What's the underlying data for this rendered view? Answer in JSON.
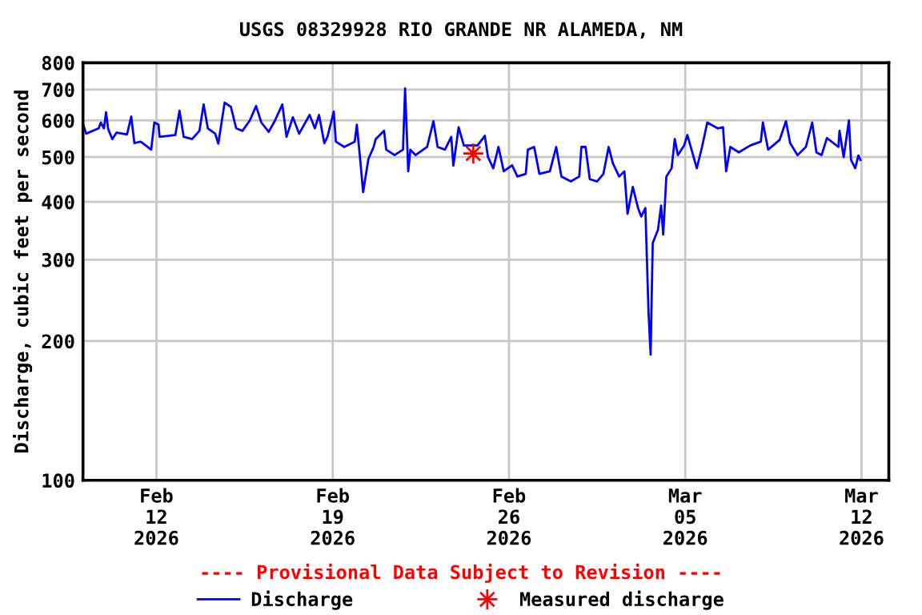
{
  "chart_data": {
    "type": "line",
    "title": "USGS 08329928 RIO GRANDE NR ALAMEDA, NM",
    "ylabel": "Discharge, cubic feet per second",
    "annotations": [
      "---- Provisional Data Subject to Revision ----"
    ],
    "log": "y",
    "grid": true,
    "legend": "bottom",
    "xlim": [
      "2026-02-09T02:00",
      "2026-03-13T02:00"
    ],
    "xticks": [
      {
        "value": "2026-02-12",
        "label": "Feb\n12\n2026"
      },
      {
        "value": "2026-02-19",
        "label": "Feb\n19\n2026"
      },
      {
        "value": "2026-02-26",
        "label": "Feb\n26\n2026"
      },
      {
        "value": "2026-03-05",
        "label": "Mar\n05\n2026"
      },
      {
        "value": "2026-03-12",
        "label": "Mar\n12\n2026"
      }
    ],
    "ylim": [
      100,
      800
    ],
    "yticks": [
      100,
      200,
      300,
      400,
      500,
      600,
      700,
      800
    ],
    "series": [
      {
        "name": "Discharge",
        "color": "#0000ff",
        "marker": "none",
        "x": [
          "2026-02-09T02:00",
          "2026-02-09T05:00",
          "2026-02-09T17:00",
          "2026-02-09T19:00",
          "2026-02-09T22:00",
          "2026-02-10T00:00",
          "2026-02-10T02:00",
          "2026-02-10T06:00",
          "2026-02-10T10:00",
          "2026-02-10T20:00",
          "2026-02-11T00:00",
          "2026-02-11T03:00",
          "2026-02-11T09:00",
          "2026-02-11T19:00",
          "2026-02-11T22:00",
          "2026-02-12T02:00",
          "2026-02-12T03:00",
          "2026-02-12T18:00",
          "2026-02-12T22:00",
          "2026-02-13T02:00",
          "2026-02-13T10:00",
          "2026-02-13T17:00",
          "2026-02-13T21:00",
          "2026-02-14T01:00",
          "2026-02-14T08:00",
          "2026-02-14T11:00",
          "2026-02-14T17:00",
          "2026-02-14T23:00",
          "2026-02-15T04:00",
          "2026-02-15T10:00",
          "2026-02-15T17:00",
          "2026-02-15T23:00",
          "2026-02-16T04:00",
          "2026-02-16T11:00",
          "2026-02-16T17:00",
          "2026-02-17T00:00",
          "2026-02-17T04:00",
          "2026-02-17T10:00",
          "2026-02-17T16:00",
          "2026-02-18T02:00",
          "2026-02-18T07:00",
          "2026-02-18T11:00",
          "2026-02-18T16:00",
          "2026-02-18T19:00",
          "2026-02-19T01:00",
          "2026-02-19T03:00",
          "2026-02-19T11:00",
          "2026-02-19T21:00",
          "2026-02-19T23:00",
          "2026-02-20T02:00",
          "2026-02-20T05:00",
          "2026-02-20T10:00",
          "2026-02-20T15:00",
          "2026-02-20T17:00",
          "2026-02-21T01:00",
          "2026-02-21T03:00",
          "2026-02-21T11:00",
          "2026-02-21T19:00",
          "2026-02-21T21:00",
          "2026-02-22T00:00",
          "2026-02-22T02:00",
          "2026-02-22T07:00",
          "2026-02-22T18:00",
          "2026-02-23T00:00",
          "2026-02-23T04:00",
          "2026-02-23T11:00",
          "2026-02-23T17:00",
          "2026-02-23T19:00",
          "2026-02-24T00:00",
          "2026-02-24T05:00",
          "2026-02-24T18:00",
          "2026-02-25T01:00",
          "2026-02-25T04:00",
          "2026-02-25T09:00",
          "2026-02-25T14:00",
          "2026-02-25T19:00",
          "2026-02-26T03:00",
          "2026-02-26T08:00",
          "2026-02-26T16:00",
          "2026-02-26T18:00",
          "2026-02-27T00:00",
          "2026-02-27T05:00",
          "2026-02-27T15:00",
          "2026-02-27T21:00",
          "2026-02-28T02:00",
          "2026-02-28T11:00",
          "2026-02-28T19:00",
          "2026-02-28T21:00",
          "2026-03-01T01:00",
          "2026-03-01T05:00",
          "2026-03-01T12:00",
          "2026-03-01T18:00",
          "2026-03-01T23:00",
          "2026-03-02T03:00",
          "2026-03-02T09:00",
          "2026-03-02T14:00",
          "2026-03-02T17:00",
          "2026-03-02T22:00",
          "2026-03-03T03:00",
          "2026-03-03T06:00",
          "2026-03-03T10:00",
          "2026-03-03T13:00",
          "2026-03-03T15:00",
          "2026-03-03T17:00",
          "2026-03-03T22:00",
          "2026-03-04T01:00",
          "2026-03-04T03:00",
          "2026-03-04T06:00",
          "2026-03-04T11:00",
          "2026-03-04T14:00",
          "2026-03-04T17:00",
          "2026-03-04T23:00",
          "2026-03-05T02:00",
          "2026-03-05T06:00",
          "2026-03-05T11:00",
          "2026-03-05T16:00",
          "2026-03-05T21:00",
          "2026-03-06T07:00",
          "2026-03-06T12:00",
          "2026-03-06T15:00",
          "2026-03-06T19:00",
          "2026-03-07T03:00",
          "2026-03-07T14:00",
          "2026-03-08T00:00",
          "2026-03-08T02:00",
          "2026-03-08T07:00",
          "2026-03-08T18:00",
          "2026-03-09T00:00",
          "2026-03-09T04:00",
          "2026-03-09T11:00",
          "2026-03-09T19:00",
          "2026-03-10T01:00",
          "2026-03-10T05:00",
          "2026-03-10T10:00",
          "2026-03-10T15:00",
          "2026-03-11T02:00",
          "2026-03-11T03:00",
          "2026-03-11T07:00",
          "2026-03-11T12:00",
          "2026-03-11T14:00",
          "2026-03-11T18:00",
          "2026-03-11T21:00",
          "2026-03-11T23:00"
        ],
        "values": [
          590,
          562,
          577,
          594,
          577,
          625,
          575,
          547,
          565,
          560,
          612,
          536,
          540,
          519,
          594,
          588,
          553,
          558,
          630,
          553,
          547,
          570,
          650,
          577,
          562,
          535,
          656,
          642,
          577,
          570,
          600,
          645,
          594,
          567,
          600,
          650,
          553,
          610,
          562,
          617,
          577,
          617,
          536,
          553,
          627,
          540,
          526,
          540,
          588,
          500,
          420,
          495,
          526,
          547,
          570,
          519,
          505,
          519,
          704,
          466,
          519,
          505,
          526,
          598,
          526,
          519,
          553,
          479,
          580,
          530,
          530,
          556,
          500,
          473,
          526,
          466,
          480,
          454,
          460,
          519,
          526,
          460,
          466,
          526,
          454,
          443,
          454,
          526,
          526,
          448,
          443,
          460,
          526,
          485,
          454,
          466,
          377,
          431,
          388,
          372,
          388,
          231,
          187,
          326,
          348,
          393,
          340,
          454,
          473,
          547,
          505,
          530,
          558,
          519,
          473,
          526,
          594,
          577,
          580,
          466,
          526,
          512,
          530,
          540,
          594,
          519,
          545,
          598,
          536,
          505,
          526,
          594,
          512,
          505,
          550,
          526,
          570,
          500,
          600,
          493,
          473,
          504,
          493
        ]
      },
      {
        "name": "Measured discharge",
        "type": "scatter",
        "color": "#ff0000",
        "marker": "star",
        "x": [
          "2026-02-24T14:00"
        ],
        "values": [
          509
        ]
      }
    ]
  }
}
